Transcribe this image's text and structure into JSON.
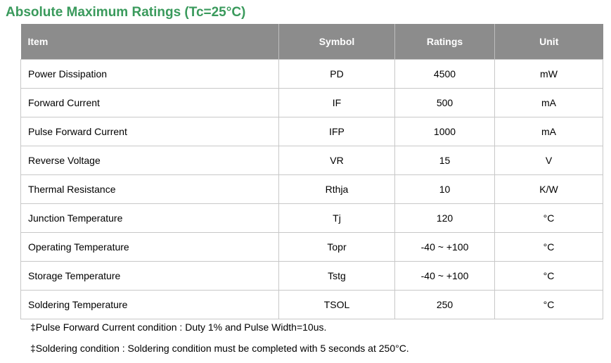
{
  "title": "Absolute Maximum Ratings (Tc=25°C)",
  "colors": {
    "title_green": "#3a9a5c",
    "header_gray": "#8c8c8c"
  },
  "table": {
    "headers": [
      "Item",
      "Symbol",
      "Ratings",
      "Unit"
    ],
    "rows": [
      [
        "Power Dissipation",
        "PD",
        "4500",
        "mW"
      ],
      [
        "Forward Current",
        "IF",
        "500",
        "mA"
      ],
      [
        "Pulse Forward Current",
        "IFP",
        "1000",
        "mA"
      ],
      [
        "Reverse Voltage",
        "VR",
        "15",
        "V"
      ],
      [
        "Thermal Resistance",
        "Rthja",
        "10",
        "K/W"
      ],
      [
        "Junction Temperature",
        "Tj",
        "120",
        "°C"
      ],
      [
        "Operating Temperature",
        "Topr",
        "-40 ~ +100",
        "°C"
      ],
      [
        "Storage Temperature",
        "Tstg",
        "-40 ~ +100",
        "°C"
      ],
      [
        "Soldering Temperature",
        "TSOL",
        "250",
        "°C"
      ]
    ]
  },
  "notes": [
    "‡Pulse Forward Current condition : Duty 1% and Pulse Width=10us.",
    "‡Soldering condition : Soldering condition must be completed with 5 seconds at 250°C."
  ]
}
